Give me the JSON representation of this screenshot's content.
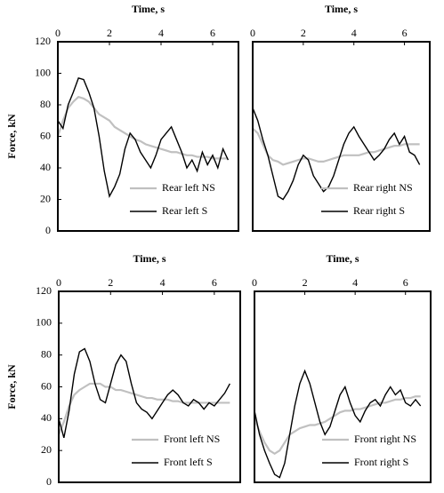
{
  "chart_data": [
    {
      "type": "line",
      "xlabel": "Time, s",
      "ylabel": "Force, kN",
      "x": [
        0,
        0.2,
        0.4,
        0.6,
        0.8,
        1.0,
        1.2,
        1.4,
        1.6,
        1.8,
        2.0,
        2.2,
        2.4,
        2.6,
        2.8,
        3.0,
        3.2,
        3.4,
        3.6,
        3.8,
        4.0,
        4.2,
        4.4,
        4.6,
        4.8,
        5.0,
        5.2,
        5.4,
        5.6,
        5.8,
        6.0,
        6.2,
        6.4,
        6.6
      ],
      "xlim": [
        0,
        7
      ],
      "xticks": [
        0,
        2,
        4,
        6
      ],
      "ylim": [
        0,
        120
      ],
      "yticks": [
        0,
        20,
        40,
        60,
        80,
        100,
        120
      ],
      "legend": "lower right",
      "series": [
        {
          "name": "Rear left NS",
          "color": "#c0c0c0",
          "values": [
            60,
            70,
            78,
            82,
            85,
            84,
            82,
            78,
            74,
            72,
            70,
            66,
            64,
            62,
            60,
            58,
            57,
            55,
            54,
            53,
            52,
            51,
            50,
            50,
            49,
            48,
            48,
            47,
            47,
            47,
            46,
            46,
            46,
            46
          ]
        },
        {
          "name": "Rear left S",
          "color": "#000000",
          "values": [
            70,
            65,
            80,
            88,
            97,
            96,
            88,
            78,
            60,
            38,
            22,
            28,
            36,
            52,
            62,
            58,
            50,
            45,
            40,
            48,
            58,
            62,
            66,
            58,
            50,
            40,
            45,
            38,
            50,
            42,
            48,
            40,
            52,
            45
          ]
        }
      ]
    },
    {
      "type": "line",
      "xlabel": "Time, s",
      "x": [
        0,
        0.2,
        0.4,
        0.6,
        0.8,
        1.0,
        1.2,
        1.4,
        1.6,
        1.8,
        2.0,
        2.2,
        2.4,
        2.6,
        2.8,
        3.0,
        3.2,
        3.4,
        3.6,
        3.8,
        4.0,
        4.2,
        4.4,
        4.6,
        4.8,
        5.0,
        5.2,
        5.4,
        5.6,
        5.8,
        6.0,
        6.2,
        6.4,
        6.6
      ],
      "xlim": [
        0,
        7
      ],
      "xticks": [
        0,
        2,
        4,
        6
      ],
      "ylim": [
        0,
        120
      ],
      "legend": "lower right",
      "series": [
        {
          "name": "Rear right NS",
          "color": "#c0c0c0",
          "values": [
            65,
            62,
            55,
            48,
            45,
            44,
            42,
            43,
            44,
            45,
            46,
            46,
            45,
            44,
            44,
            45,
            46,
            47,
            48,
            48,
            48,
            48,
            49,
            50,
            50,
            51,
            52,
            53,
            54,
            54,
            55,
            55,
            55,
            55
          ]
        },
        {
          "name": "Rear right S",
          "color": "#000000",
          "values": [
            78,
            70,
            58,
            48,
            35,
            22,
            20,
            25,
            32,
            42,
            48,
            45,
            35,
            30,
            25,
            28,
            35,
            45,
            55,
            62,
            66,
            60,
            55,
            50,
            45,
            48,
            52,
            58,
            62,
            55,
            60,
            50,
            48,
            42
          ]
        }
      ]
    },
    {
      "type": "line",
      "xlabel": "Time, s",
      "ylabel": "Force, kN",
      "x": [
        0,
        0.2,
        0.4,
        0.6,
        0.8,
        1.0,
        1.2,
        1.4,
        1.6,
        1.8,
        2.0,
        2.2,
        2.4,
        2.6,
        2.8,
        3.0,
        3.2,
        3.4,
        3.6,
        3.8,
        4.0,
        4.2,
        4.4,
        4.6,
        4.8,
        5.0,
        5.2,
        5.4,
        5.6,
        5.8,
        6.0,
        6.2,
        6.4,
        6.6
      ],
      "xlim": [
        0,
        7
      ],
      "xticks": [
        0,
        2,
        4,
        6
      ],
      "ylim": [
        0,
        120
      ],
      "yticks": [
        0,
        20,
        40,
        60,
        80,
        100,
        120
      ],
      "legend": "lower right",
      "series": [
        {
          "name": "Front left NS",
          "color": "#c0c0c0",
          "values": [
            30,
            38,
            48,
            55,
            58,
            60,
            62,
            62,
            62,
            60,
            60,
            58,
            58,
            57,
            56,
            55,
            54,
            53,
            53,
            52,
            52,
            52,
            51,
            51,
            50,
            50,
            50,
            50,
            50,
            50,
            50,
            50,
            50,
            50
          ]
        },
        {
          "name": "Front left S",
          "color": "#000000",
          "values": [
            40,
            28,
            45,
            68,
            82,
            84,
            76,
            62,
            52,
            50,
            62,
            74,
            80,
            76,
            62,
            50,
            46,
            44,
            40,
            45,
            50,
            55,
            58,
            55,
            50,
            48,
            52,
            50,
            46,
            50,
            48,
            52,
            56,
            62
          ]
        }
      ]
    },
    {
      "type": "line",
      "xlabel": "Time, s",
      "x": [
        0,
        0.2,
        0.4,
        0.6,
        0.8,
        1.0,
        1.2,
        1.4,
        1.6,
        1.8,
        2.0,
        2.2,
        2.4,
        2.6,
        2.8,
        3.0,
        3.2,
        3.4,
        3.6,
        3.8,
        4.0,
        4.2,
        4.4,
        4.6,
        4.8,
        5.0,
        5.2,
        5.4,
        5.6,
        5.8,
        6.0,
        6.2,
        6.4,
        6.6
      ],
      "xlim": [
        0,
        7
      ],
      "xticks": [
        0,
        2,
        4,
        6
      ],
      "ylim": [
        0,
        120
      ],
      "legend": "lower right",
      "series": [
        {
          "name": "Front right NS",
          "color": "#c0c0c0",
          "values": [
            40,
            32,
            25,
            20,
            18,
            20,
            25,
            30,
            32,
            34,
            35,
            36,
            36,
            37,
            38,
            40,
            42,
            44,
            45,
            45,
            46,
            46,
            47,
            48,
            49,
            50,
            50,
            51,
            52,
            52,
            53,
            53,
            54,
            54
          ]
        },
        {
          "name": "Front right S",
          "color": "#000000",
          "values": [
            45,
            30,
            20,
            12,
            5,
            3,
            12,
            30,
            48,
            62,
            70,
            62,
            50,
            38,
            30,
            35,
            45,
            55,
            60,
            50,
            42,
            38,
            45,
            50,
            52,
            48,
            55,
            60,
            55,
            58,
            50,
            48,
            52,
            48
          ]
        }
      ]
    }
  ]
}
